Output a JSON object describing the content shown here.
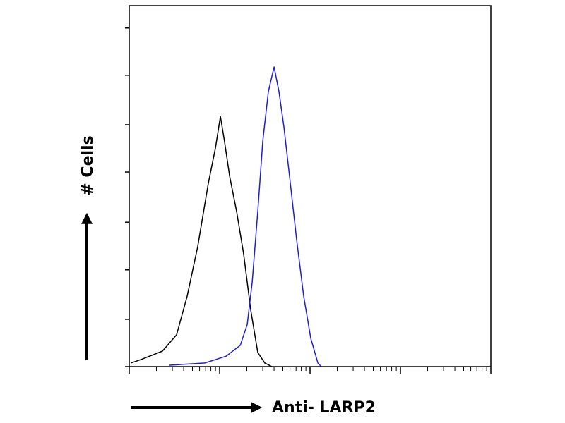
{
  "chart_data": {
    "type": "line",
    "xlabel": "Anti- LARP2",
    "ylabel": "# Cells",
    "xscale": "log",
    "xlim": [
      1,
      10000
    ],
    "xticks": [
      1,
      10,
      100,
      1000,
      10000
    ],
    "ylim": [
      0,
      100
    ],
    "yticks": [
      0,
      13.1,
      26.8,
      40,
      53.9,
      67,
      80.7,
      93.8
    ],
    "series": [
      {
        "color": "#000000",
        "x": [
          1.04,
          1.36,
          2.33,
          3.34,
          4.37,
          5.72,
          7.5,
          8.98,
          10.2,
          11.3,
          12.9,
          15.4,
          18.4,
          22.1,
          26.4,
          31.6,
          37.8
        ],
        "values": [
          1.0,
          2.0,
          4.3,
          8.8,
          19.5,
          33.2,
          50.8,
          60.5,
          69.3,
          62.5,
          52.7,
          43.0,
          31.3,
          15.6,
          3.9,
          1.0,
          0
        ]
      },
      {
        "color": "#1f1fd0",
        "x": [
          2.79,
          6.85,
          11.8,
          16.9,
          20.2,
          22.9,
          26.4,
          30.0,
          34.6,
          40.0,
          45.3,
          51.4,
          59.3,
          71.1,
          85.1,
          102,
          122,
          133
        ],
        "values": [
          0.4,
          1.0,
          2.9,
          5.9,
          11.7,
          23.4,
          43.0,
          62.5,
          76.2,
          83.0,
          76.2,
          66.4,
          52.7,
          35.2,
          19.5,
          7.8,
          1.0,
          0
        ]
      }
    ]
  }
}
